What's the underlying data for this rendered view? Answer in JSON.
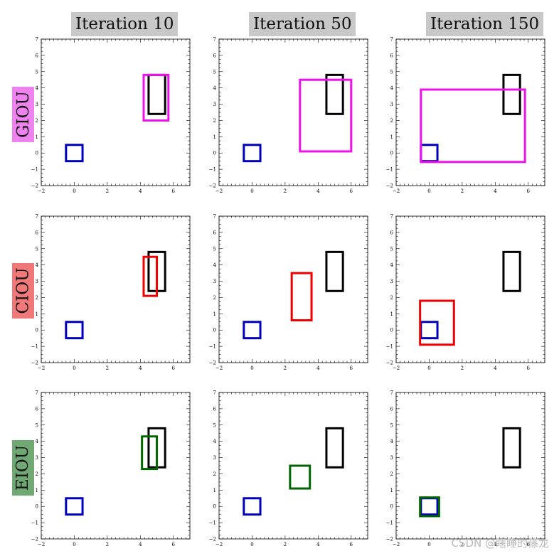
{
  "column_titles": [
    "Iteration 10",
    "Iteration 50",
    "Iteration 150"
  ],
  "row_labels": [
    {
      "text": "GIOU",
      "color": "#ee82ee"
    },
    {
      "text": "CIOU",
      "color": "#f07878"
    },
    {
      "text": "EIOU",
      "color": "#6fa873"
    }
  ],
  "watermark": "CSDN @瞎睡的篠龙",
  "chart_data": {
    "type": "scatter",
    "description_axes": {
      "xlim": [
        -2,
        7
      ],
      "ylim": [
        -2,
        7
      ],
      "xticks": [
        -2,
        0,
        2,
        4,
        6
      ],
      "yticks": [
        -2,
        -1,
        0,
        1,
        2,
        3,
        4,
        5,
        6,
        7
      ],
      "grid": false
    },
    "colors": {
      "target": "#000000",
      "anchor": "#0000bb",
      "GIOU": "#ee11ee",
      "CIOU": "#ee0000",
      "EIOU": "#006600"
    },
    "target_box": {
      "x1": 4.5,
      "y1": 2.4,
      "x2": 5.5,
      "y2": 4.8
    },
    "anchor_box": {
      "x1": -0.5,
      "y1": -0.5,
      "x2": 0.5,
      "y2": 0.5
    },
    "panels": [
      {
        "row": "GIOU",
        "iteration": 10,
        "pred_box": {
          "x1": 4.2,
          "y1": 2.0,
          "x2": 5.7,
          "y2": 4.8
        }
      },
      {
        "row": "GIOU",
        "iteration": 50,
        "pred_box": {
          "x1": 2.9,
          "y1": 0.1,
          "x2": 6.0,
          "y2": 4.5
        }
      },
      {
        "row": "GIOU",
        "iteration": 150,
        "pred_box": {
          "x1": -0.5,
          "y1": -0.55,
          "x2": 5.8,
          "y2": 3.9
        }
      },
      {
        "row": "CIOU",
        "iteration": 10,
        "pred_box": {
          "x1": 4.2,
          "y1": 2.1,
          "x2": 5.0,
          "y2": 4.5
        }
      },
      {
        "row": "CIOU",
        "iteration": 50,
        "pred_box": {
          "x1": 2.4,
          "y1": 0.6,
          "x2": 3.6,
          "y2": 3.5
        }
      },
      {
        "row": "CIOU",
        "iteration": 150,
        "pred_box": {
          "x1": -0.55,
          "y1": -0.9,
          "x2": 1.5,
          "y2": 1.8
        }
      },
      {
        "row": "EIOU",
        "iteration": 10,
        "pred_box": {
          "x1": 4.1,
          "y1": 2.3,
          "x2": 5.0,
          "y2": 4.3
        }
      },
      {
        "row": "EIOU",
        "iteration": 50,
        "pred_box": {
          "x1": 2.3,
          "y1": 1.1,
          "x2": 3.5,
          "y2": 2.5
        }
      },
      {
        "row": "EIOU",
        "iteration": 150,
        "pred_box": {
          "x1": -0.55,
          "y1": -0.6,
          "x2": 0.6,
          "y2": 0.55
        }
      }
    ]
  }
}
